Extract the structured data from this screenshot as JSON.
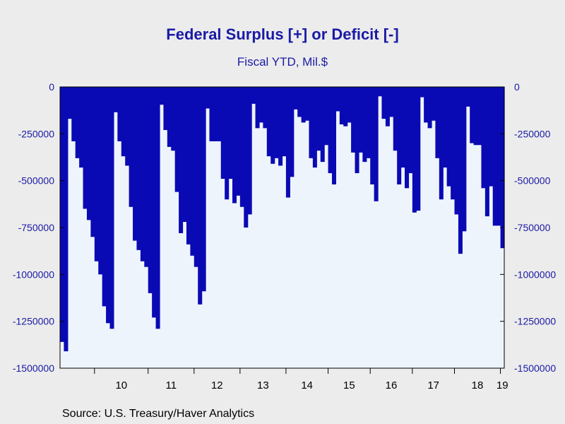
{
  "chart_data": {
    "type": "bar",
    "title": "Federal Surplus [+] or Deficit [-]",
    "subtitle": "Fiscal YTD, Mil.$",
    "source": "Source:  U.S. Treasury/Haver Analytics",
    "ylim": [
      -1500000,
      0
    ],
    "y_ticks": [
      0,
      -250000,
      -500000,
      -750000,
      -1000000,
      -1250000,
      -1500000
    ],
    "y_tick_labels": [
      "0",
      "-250000",
      "-500000",
      "-750000",
      "-1000000",
      "-1250000",
      "-1500000"
    ],
    "x_tick_labels": [
      "10",
      "11",
      "12",
      "13",
      "14",
      "15",
      "16",
      "17",
      "18",
      "19"
    ],
    "grid": false,
    "bar_color": "#0a0ab4",
    "plot_background": "#eef4fc",
    "series": [
      {
        "values": [
          -1360000,
          -1410000,
          -170000,
          -290000,
          -380000,
          -430000,
          -650000,
          -710000,
          -800000,
          -930000,
          -1000000,
          -1170000,
          -1260000,
          -1290000,
          -135000,
          -290000,
          -370000,
          -420000,
          -640000,
          -820000,
          -870000,
          -930000,
          -960000,
          -1100000,
          -1230000,
          -1290000,
          -95000,
          -230000,
          -320000,
          -340000,
          -560000,
          -780000,
          -720000,
          -840000,
          -900000,
          -960000,
          -1160000,
          -1090000,
          -115000,
          -290000,
          -290000,
          -290000,
          -490000,
          -600000,
          -490000,
          -620000,
          -580000,
          -640000,
          -750000,
          -680000,
          -90000,
          -220000,
          -190000,
          -220000,
          -370000,
          -410000,
          -380000,
          -420000,
          -370000,
          -590000,
          -480000,
          -120000,
          -160000,
          -190000,
          -180000,
          -380000,
          -430000,
          -340000,
          -400000,
          -310000,
          -460000,
          -520000,
          -130000,
          -200000,
          -210000,
          -190000,
          -350000,
          -460000,
          -350000,
          -400000,
          -380000,
          -520000,
          -610000,
          -50000,
          -170000,
          -210000,
          -160000,
          -340000,
          -520000,
          -430000,
          -540000,
          -460000,
          -670000,
          -660000,
          -55000,
          -190000,
          -220000,
          -180000,
          -380000,
          -600000,
          -430000,
          -530000,
          -600000,
          -680000,
          -890000,
          -770000,
          -105000,
          -300000,
          -310000,
          -310000,
          -540000,
          -690000,
          -530000,
          -740000,
          -740000,
          -860000
        ]
      }
    ]
  }
}
